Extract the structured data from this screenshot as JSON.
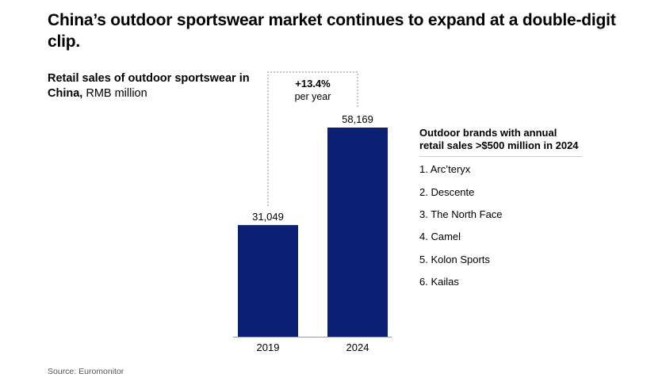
{
  "headline": "China’s outdoor sportswear market continues to expand at a double-digit clip.",
  "subtitle": {
    "bold": "Retail sales of outdoor sportswear in China,",
    "unit": " RMB million"
  },
  "chart_data": {
    "type": "bar",
    "title": "Retail sales of outdoor sportswear in China, RMB million",
    "categories": [
      "2019",
      "2024"
    ],
    "values": [
      31049,
      58169
    ],
    "value_labels": [
      "31,049",
      "58,169"
    ],
    "ylim": [
      0,
      58169
    ],
    "bar_color": "#0b1f73",
    "annotation": {
      "value": "+13.4%",
      "note": "per year"
    }
  },
  "brands": {
    "heading": "Outdoor brands with annual retail sales >$500 million in 2024",
    "items": [
      "1. Arc’teryx",
      "2. Descente",
      "3. The North Face",
      "4. Camel",
      "5. Kolon Sports",
      "6. Kailas"
    ]
  },
  "source": "Source: Euromonitor"
}
